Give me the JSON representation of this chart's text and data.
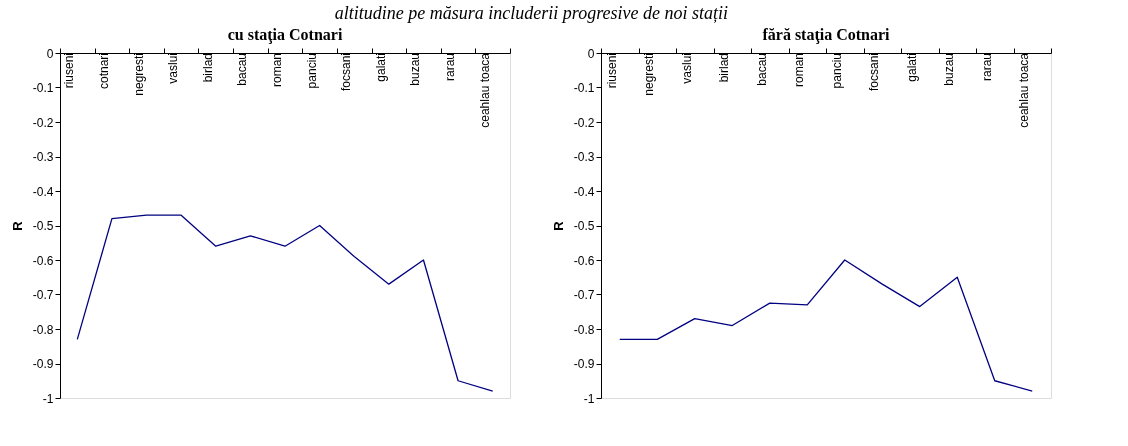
{
  "chart_data": [
    {
      "type": "line",
      "title": "cu staţia Cotnari",
      "ylabel": "R",
      "annotations": [
        "altitudine pe măsura includerii progresive de noi stații"
      ],
      "categories": [
        "riuseni",
        "cotnari",
        "negresti",
        "vaslui",
        "birlad",
        "bacau",
        "roman",
        "panciu",
        "focsani",
        "galati",
        "buzau",
        "rarau",
        "ceahlau toaca"
      ],
      "series": [
        {
          "color": "#000080",
          "values": [
            -0.83,
            -0.48,
            -0.47,
            -0.47,
            -0.56,
            -0.53,
            -0.56,
            -0.5,
            -0.59,
            -0.67,
            -0.6,
            -0.95,
            -0.98
          ]
        }
      ],
      "ylim": [
        -1,
        0
      ],
      "yticks": [
        -1,
        -0.9,
        -0.8,
        -0.7,
        -0.6,
        -0.5,
        -0.4,
        -0.3,
        -0.2,
        -0.1,
        0
      ],
      "grid": false
    },
    {
      "type": "line",
      "title": "fără staţia Cotnari",
      "ylabel": "R",
      "categories": [
        "riuseni",
        "negresti",
        "vaslui",
        "birlad",
        "bacau",
        "roman",
        "panciu",
        "focsani",
        "galati",
        "buzau",
        "rarau",
        "ceahlau toaca"
      ],
      "series": [
        {
          "color": "#000080",
          "values": [
            -0.83,
            -0.83,
            -0.77,
            -0.79,
            -0.725,
            -0.73,
            -0.6,
            -0.67,
            -0.735,
            -0.65,
            -0.95,
            -0.98
          ]
        }
      ],
      "ylim": [
        -1,
        0
      ],
      "yticks": [
        -1,
        -0.9,
        -0.8,
        -0.7,
        -0.6,
        -0.5,
        -0.4,
        -0.3,
        -0.2,
        -0.1,
        0
      ],
      "grid": false
    }
  ]
}
